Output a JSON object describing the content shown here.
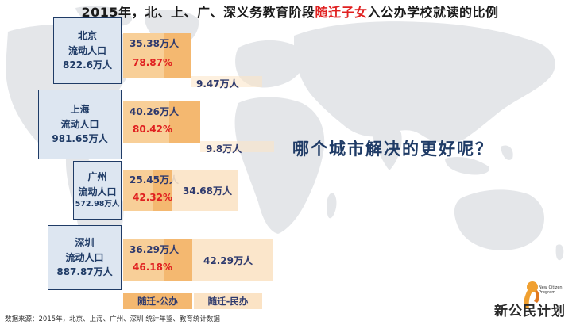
{
  "title": {
    "part1": "2015年，北、上、广、深义务教育阶段",
    "highlight": "随迁子女",
    "part2": "入公办学校就读的比例"
  },
  "question": "哪个城市解决的更好呢？",
  "source": "数据来源：2015年，北京、上海、广州、深圳 统计年鉴、教育统计数据",
  "logo": {
    "text": "新公民计划",
    "sub_line1": "New Citizen",
    "sub_line2": "Program"
  },
  "colors": {
    "public": "#f4b870",
    "private": "#fbe3c5",
    "accent": "#e02020",
    "navy": "#1f3b66"
  },
  "legend": {
    "public": "随迁-公办",
    "private": "随迁-民办"
  },
  "chart_data": {
    "type": "bar",
    "orientation": "horizontal",
    "stacked": true,
    "categories": [
      "北京",
      "上海",
      "广州",
      "深圳"
    ],
    "series": [
      {
        "name": "随迁-公办",
        "values": [
          35.38,
          40.26,
          25.45,
          36.29
        ],
        "labels": [
          "35.38万人",
          "40.26万人",
          "25.45万人",
          "36.29万人"
        ],
        "pct_labels": [
          "78.87%",
          "80.42%",
          "42.32%",
          "46.18%"
        ]
      },
      {
        "name": "随迁-民办",
        "values": [
          9.47,
          9.8,
          34.68,
          42.29
        ],
        "labels": [
          "9.47万人",
          "9.8万人",
          "34.68万人",
          "42.29万人"
        ]
      }
    ],
    "cities": [
      {
        "name": "北京",
        "label": "流动人口",
        "population": "822.6万人"
      },
      {
        "name": "上海",
        "label": "流动人口",
        "population": "981.65万人"
      },
      {
        "name": "广州",
        "label": "流动人口",
        "population": "572.98万人"
      },
      {
        "name": "深圳",
        "label": "流动人口",
        "population": "887.87万人"
      }
    ]
  }
}
